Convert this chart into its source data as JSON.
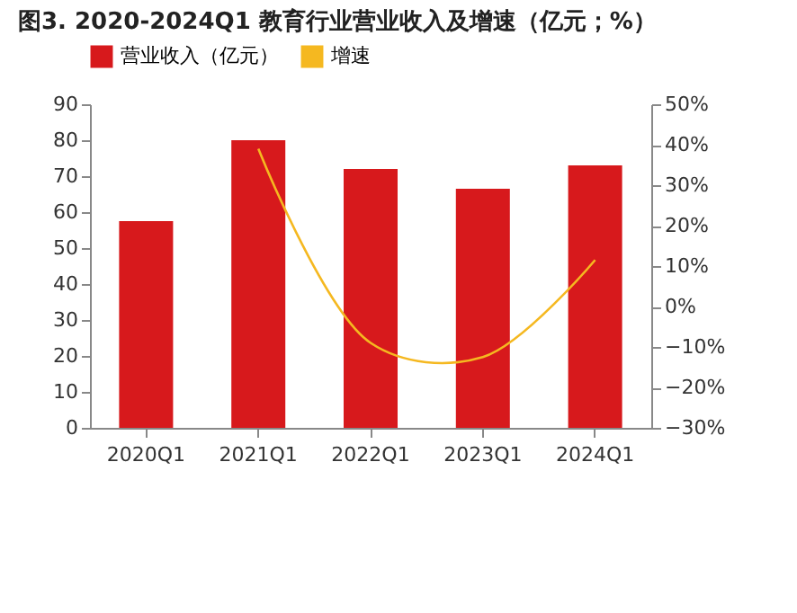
{
  "chart_data": {
    "type": "bar",
    "title": "图3. 2020-2024Q1 教育行业营业收入及增速（亿元；%）",
    "categories": [
      "2020Q1",
      "2021Q1",
      "2022Q1",
      "2023Q1",
      "2024Q1"
    ],
    "series": [
      {
        "name": "营业收入（亿元）",
        "color": "#d7191c",
        "values": [
          57.5,
          80,
          72,
          66.5,
          73
        ]
      },
      {
        "name": "增速",
        "type": "line",
        "axis": "y2",
        "color": "#f5b820",
        "values": [
          null,
          39,
          -9,
          -12.5,
          11.5
        ]
      }
    ],
    "ylim": [
      0,
      90
    ],
    "yticks": [
      0,
      10,
      20,
      30,
      40,
      50,
      60,
      70,
      80,
      90
    ],
    "y2lim": [
      -30,
      50
    ],
    "y2ticks": [
      {
        "value": -30,
        "label": "−30%"
      },
      {
        "value": -20,
        "label": "−20%"
      },
      {
        "value": -10,
        "label": "−10%"
      },
      {
        "value": 0,
        "label": "0%"
      },
      {
        "value": 10,
        "label": "10%"
      },
      {
        "value": 20,
        "label": "20%"
      },
      {
        "value": 30,
        "label": "30%"
      },
      {
        "value": 40,
        "label": "40%"
      },
      {
        "value": 50,
        "label": "50%"
      }
    ],
    "grid": false,
    "legend": "top"
  }
}
